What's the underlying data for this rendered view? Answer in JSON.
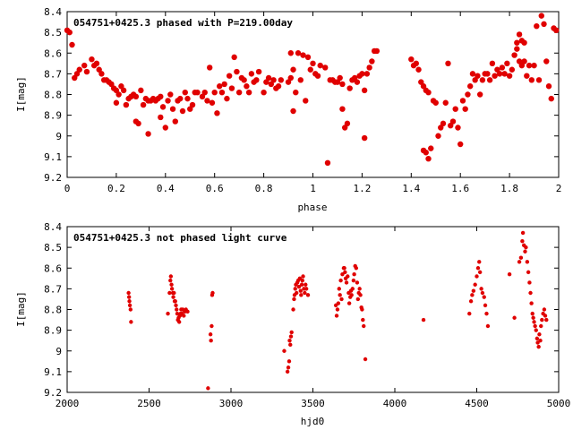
{
  "chart_data": [
    {
      "type": "scatter",
      "title": "054751+0425.3 phased with P=219.00day",
      "xlabel": "phase",
      "ylabel": "I[mag]",
      "xlim": [
        0,
        2
      ],
      "ylim": [
        9.2,
        8.4
      ],
      "y_inverted": true,
      "marker_color": "#e00000",
      "xticks": [
        "0",
        "0.2",
        "0.4",
        "0.6",
        "0.8",
        "1",
        "1.2",
        "1.4",
        "1.6",
        "1.8",
        "2"
      ],
      "yticks": [
        "8.4",
        "8.5",
        "8.6",
        "8.7",
        "8.8",
        "8.9",
        "9",
        "9.1",
        "9.2"
      ],
      "points": [
        [
          0.0,
          8.49
        ],
        [
          0.01,
          8.5
        ],
        [
          0.02,
          8.56
        ],
        [
          0.03,
          8.72
        ],
        [
          0.04,
          8.7
        ],
        [
          0.05,
          8.68
        ],
        [
          0.07,
          8.66
        ],
        [
          0.08,
          8.69
        ],
        [
          0.1,
          8.63
        ],
        [
          0.11,
          8.66
        ],
        [
          0.12,
          8.65
        ],
        [
          0.13,
          8.68
        ],
        [
          0.14,
          8.7
        ],
        [
          0.15,
          8.73
        ],
        [
          0.16,
          8.73
        ],
        [
          0.17,
          8.74
        ],
        [
          0.18,
          8.75
        ],
        [
          0.19,
          8.77
        ],
        [
          0.2,
          8.78
        ],
        [
          0.2,
          8.84
        ],
        [
          0.21,
          8.8
        ],
        [
          0.22,
          8.76
        ],
        [
          0.23,
          8.78
        ],
        [
          0.24,
          8.85
        ],
        [
          0.25,
          8.82
        ],
        [
          0.26,
          8.81
        ],
        [
          0.27,
          8.8
        ],
        [
          0.28,
          8.81
        ],
        [
          0.28,
          8.93
        ],
        [
          0.29,
          8.94
        ],
        [
          0.3,
          8.78
        ],
        [
          0.31,
          8.85
        ],
        [
          0.32,
          8.82
        ],
        [
          0.33,
          8.99
        ],
        [
          0.33,
          8.83
        ],
        [
          0.34,
          8.83
        ],
        [
          0.35,
          8.82
        ],
        [
          0.36,
          8.83
        ],
        [
          0.37,
          8.82
        ],
        [
          0.38,
          8.81
        ],
        [
          0.38,
          8.91
        ],
        [
          0.39,
          8.86
        ],
        [
          0.4,
          8.96
        ],
        [
          0.41,
          8.83
        ],
        [
          0.42,
          8.8
        ],
        [
          0.43,
          8.87
        ],
        [
          0.44,
          8.93
        ],
        [
          0.45,
          8.83
        ],
        [
          0.46,
          8.82
        ],
        [
          0.47,
          8.88
        ],
        [
          0.48,
          8.79
        ],
        [
          0.49,
          8.82
        ],
        [
          0.5,
          8.87
        ],
        [
          0.51,
          8.85
        ],
        [
          0.52,
          8.79
        ],
        [
          0.53,
          8.79
        ],
        [
          0.55,
          8.81
        ],
        [
          0.56,
          8.79
        ],
        [
          0.57,
          8.83
        ],
        [
          0.58,
          8.67
        ],
        [
          0.59,
          8.84
        ],
        [
          0.6,
          8.79
        ],
        [
          0.61,
          8.89
        ],
        [
          0.62,
          8.76
        ],
        [
          0.63,
          8.79
        ],
        [
          0.64,
          8.75
        ],
        [
          0.65,
          8.82
        ],
        [
          0.66,
          8.71
        ],
        [
          0.67,
          8.77
        ],
        [
          0.68,
          8.62
        ],
        [
          0.69,
          8.69
        ],
        [
          0.7,
          8.79
        ],
        [
          0.71,
          8.72
        ],
        [
          0.72,
          8.73
        ],
        [
          0.73,
          8.76
        ],
        [
          0.74,
          8.79
        ],
        [
          0.75,
          8.7
        ],
        [
          0.76,
          8.74
        ],
        [
          0.77,
          8.73
        ],
        [
          0.78,
          8.69
        ],
        [
          0.8,
          8.79
        ],
        [
          0.81,
          8.74
        ],
        [
          0.82,
          8.72
        ],
        [
          0.83,
          8.75
        ],
        [
          0.84,
          8.73
        ],
        [
          0.85,
          8.77
        ],
        [
          0.86,
          8.76
        ],
        [
          0.87,
          8.73
        ],
        [
          0.9,
          8.74
        ],
        [
          0.91,
          8.72
        ],
        [
          0.91,
          8.6
        ],
        [
          0.92,
          8.68
        ],
        [
          0.92,
          8.88
        ],
        [
          0.93,
          8.79
        ],
        [
          0.94,
          8.6
        ],
        [
          0.95,
          8.73
        ],
        [
          0.96,
          8.61
        ],
        [
          0.97,
          8.83
        ],
        [
          0.98,
          8.62
        ],
        [
          0.99,
          8.68
        ],
        [
          1.0,
          8.65
        ],
        [
          1.01,
          8.7
        ],
        [
          1.02,
          8.71
        ],
        [
          1.03,
          8.66
        ],
        [
          1.05,
          8.67
        ],
        [
          1.06,
          9.13
        ],
        [
          1.07,
          8.73
        ],
        [
          1.08,
          8.73
        ],
        [
          1.09,
          8.74
        ],
        [
          1.1,
          8.74
        ],
        [
          1.11,
          8.72
        ],
        [
          1.12,
          8.75
        ],
        [
          1.12,
          8.87
        ],
        [
          1.13,
          8.96
        ],
        [
          1.14,
          8.94
        ],
        [
          1.15,
          8.77
        ],
        [
          1.16,
          8.73
        ],
        [
          1.17,
          8.72
        ],
        [
          1.18,
          8.74
        ],
        [
          1.19,
          8.71
        ],
        [
          1.2,
          8.7
        ],
        [
          1.21,
          8.78
        ],
        [
          1.22,
          8.7
        ],
        [
          1.23,
          8.67
        ],
        [
          1.24,
          8.64
        ],
        [
          1.25,
          8.59
        ],
        [
          1.26,
          8.59
        ],
        [
          1.21,
          9.01
        ],
        [
          1.4,
          8.63
        ],
        [
          1.41,
          8.66
        ],
        [
          1.42,
          8.65
        ],
        [
          1.43,
          8.68
        ],
        [
          1.44,
          8.74
        ],
        [
          1.45,
          8.76
        ],
        [
          1.46,
          8.78
        ],
        [
          1.47,
          8.79
        ],
        [
          1.45,
          9.07
        ],
        [
          1.46,
          9.08
        ],
        [
          1.47,
          9.11
        ],
        [
          1.48,
          9.06
        ],
        [
          1.49,
          8.83
        ],
        [
          1.5,
          8.84
        ],
        [
          1.51,
          9.0
        ],
        [
          1.52,
          8.96
        ],
        [
          1.53,
          8.94
        ],
        [
          1.54,
          8.84
        ],
        [
          1.55,
          8.65
        ],
        [
          1.56,
          8.95
        ],
        [
          1.57,
          8.93
        ],
        [
          1.58,
          8.87
        ],
        [
          1.59,
          8.96
        ],
        [
          1.6,
          9.04
        ],
        [
          1.61,
          8.83
        ],
        [
          1.62,
          8.87
        ],
        [
          1.63,
          8.8
        ],
        [
          1.64,
          8.76
        ],
        [
          1.65,
          8.7
        ],
        [
          1.66,
          8.73
        ],
        [
          1.67,
          8.71
        ],
        [
          1.68,
          8.8
        ],
        [
          1.69,
          8.73
        ],
        [
          1.7,
          8.7
        ],
        [
          1.71,
          8.7
        ],
        [
          1.72,
          8.73
        ],
        [
          1.73,
          8.65
        ],
        [
          1.74,
          8.71
        ],
        [
          1.75,
          8.68
        ],
        [
          1.76,
          8.7
        ],
        [
          1.77,
          8.67
        ],
        [
          1.78,
          8.7
        ],
        [
          1.79,
          8.65
        ],
        [
          1.8,
          8.71
        ],
        [
          1.81,
          8.68
        ],
        [
          1.82,
          8.61
        ],
        [
          1.83,
          8.58
        ],
        [
          1.84,
          8.64
        ],
        [
          1.85,
          8.66
        ],
        [
          1.86,
          8.64
        ],
        [
          1.87,
          8.71
        ],
        [
          1.88,
          8.66
        ],
        [
          1.89,
          8.73
        ],
        [
          1.9,
          8.66
        ],
        [
          1.91,
          8.47
        ],
        [
          1.92,
          8.73
        ],
        [
          1.93,
          8.42
        ],
        [
          1.94,
          8.46
        ],
        [
          1.95,
          8.64
        ],
        [
          1.96,
          8.76
        ],
        [
          1.97,
          8.82
        ],
        [
          1.98,
          8.48
        ],
        [
          1.99,
          8.49
        ],
        [
          1.84,
          8.51
        ],
        [
          1.83,
          8.55
        ],
        [
          1.85,
          8.54
        ],
        [
          1.86,
          8.55
        ]
      ]
    },
    {
      "type": "scatter",
      "title": "054751+0425.3 not phased light curve",
      "xlabel": "hjd0",
      "ylabel": "I[mag]",
      "xlim": [
        2000,
        5000
      ],
      "ylim": [
        9.2,
        8.4
      ],
      "y_inverted": true,
      "marker_color": "#e00000",
      "xticks": [
        "2000",
        "2500",
        "3000",
        "3500",
        "4000",
        "4500",
        "5000"
      ],
      "yticks": [
        "8.4",
        "8.5",
        "8.6",
        "8.7",
        "8.8",
        "8.9",
        "9",
        "9.1",
        "9.2"
      ],
      "points": [
        [
          2375,
          8.72
        ],
        [
          2378,
          8.74
        ],
        [
          2380,
          8.76
        ],
        [
          2383,
          8.78
        ],
        [
          2387,
          8.8
        ],
        [
          2390,
          8.86
        ],
        [
          2615,
          8.82
        ],
        [
          2625,
          8.72
        ],
        [
          2630,
          8.66
        ],
        [
          2633,
          8.64
        ],
        [
          2637,
          8.68
        ],
        [
          2640,
          8.7
        ],
        [
          2645,
          8.72
        ],
        [
          2648,
          8.74
        ],
        [
          2652,
          8.72
        ],
        [
          2656,
          8.76
        ],
        [
          2660,
          8.76
        ],
        [
          2664,
          8.78
        ],
        [
          2668,
          8.8
        ],
        [
          2672,
          8.82
        ],
        [
          2676,
          8.85
        ],
        [
          2680,
          8.84
        ],
        [
          2684,
          8.86
        ],
        [
          2688,
          8.83
        ],
        [
          2692,
          8.82
        ],
        [
          2696,
          8.8
        ],
        [
          2700,
          8.82
        ],
        [
          2706,
          8.8
        ],
        [
          2712,
          8.83
        ],
        [
          2718,
          8.81
        ],
        [
          2725,
          8.8
        ],
        [
          2735,
          8.81
        ],
        [
          2860,
          9.18
        ],
        [
          2875,
          8.92
        ],
        [
          2878,
          8.95
        ],
        [
          2882,
          8.88
        ],
        [
          2885,
          8.73
        ],
        [
          2888,
          8.72
        ],
        [
          3325,
          9.0
        ],
        [
          3345,
          9.1
        ],
        [
          3350,
          9.08
        ],
        [
          3355,
          9.05
        ],
        [
          3358,
          8.95
        ],
        [
          3362,
          8.97
        ],
        [
          3366,
          8.93
        ],
        [
          3370,
          8.91
        ],
        [
          3380,
          8.8
        ],
        [
          3385,
          8.75
        ],
        [
          3388,
          8.73
        ],
        [
          3392,
          8.7
        ],
        [
          3396,
          8.68
        ],
        [
          3400,
          8.72
        ],
        [
          3405,
          8.67
        ],
        [
          3410,
          8.66
        ],
        [
          3415,
          8.69
        ],
        [
          3420,
          8.65
        ],
        [
          3425,
          8.71
        ],
        [
          3428,
          8.73
        ],
        [
          3432,
          8.68
        ],
        [
          3436,
          8.66
        ],
        [
          3440,
          8.64
        ],
        [
          3445,
          8.7
        ],
        [
          3450,
          8.72
        ],
        [
          3455,
          8.68
        ],
        [
          3460,
          8.7
        ],
        [
          3470,
          8.73
        ],
        [
          3640,
          8.78
        ],
        [
          3645,
          8.83
        ],
        [
          3650,
          8.8
        ],
        [
          3655,
          8.77
        ],
        [
          3660,
          8.7
        ],
        [
          3665,
          8.73
        ],
        [
          3670,
          8.66
        ],
        [
          3675,
          8.75
        ],
        [
          3680,
          8.63
        ],
        [
          3688,
          8.6
        ],
        [
          3692,
          8.6
        ],
        [
          3696,
          8.62
        ],
        [
          3700,
          8.65
        ],
        [
          3705,
          8.67
        ],
        [
          3712,
          8.64
        ],
        [
          3718,
          8.72
        ],
        [
          3722,
          8.77
        ],
        [
          3728,
          8.74
        ],
        [
          3732,
          8.71
        ],
        [
          3736,
          8.73
        ],
        [
          3742,
          8.7
        ],
        [
          3748,
          8.66
        ],
        [
          3752,
          8.63
        ],
        [
          3758,
          8.59
        ],
        [
          3764,
          8.6
        ],
        [
          3770,
          8.67
        ],
        [
          3775,
          8.75
        ],
        [
          3780,
          8.72
        ],
        [
          3785,
          8.7
        ],
        [
          3790,
          8.73
        ],
        [
          3796,
          8.79
        ],
        [
          3800,
          8.8
        ],
        [
          3805,
          8.85
        ],
        [
          3810,
          8.88
        ],
        [
          3820,
          9.04
        ],
        [
          4175,
          8.85
        ],
        [
          4455,
          8.82
        ],
        [
          4465,
          8.76
        ],
        [
          4472,
          8.73
        ],
        [
          4480,
          8.71
        ],
        [
          4490,
          8.68
        ],
        [
          4500,
          8.64
        ],
        [
          4508,
          8.6
        ],
        [
          4515,
          8.57
        ],
        [
          4520,
          8.62
        ],
        [
          4528,
          8.7
        ],
        [
          4535,
          8.72
        ],
        [
          4545,
          8.74
        ],
        [
          4552,
          8.78
        ],
        [
          4560,
          8.82
        ],
        [
          4568,
          8.88
        ],
        [
          4700,
          8.63
        ],
        [
          4730,
          8.84
        ],
        [
          4760,
          8.57
        ],
        [
          4770,
          8.55
        ],
        [
          4778,
          8.47
        ],
        [
          4782,
          8.43
        ],
        [
          4788,
          8.49
        ],
        [
          4795,
          8.52
        ],
        [
          4800,
          8.5
        ],
        [
          4808,
          8.57
        ],
        [
          4815,
          8.62
        ],
        [
          4822,
          8.67
        ],
        [
          4828,
          8.72
        ],
        [
          4834,
          8.77
        ],
        [
          4840,
          8.82
        ],
        [
          4845,
          8.84
        ],
        [
          4850,
          8.86
        ],
        [
          4856,
          8.88
        ],
        [
          4862,
          8.9
        ],
        [
          4868,
          8.94
        ],
        [
          4872,
          8.96
        ],
        [
          4878,
          8.98
        ],
        [
          4882,
          8.92
        ],
        [
          4888,
          8.95
        ],
        [
          4892,
          8.88
        ],
        [
          4898,
          8.85
        ],
        [
          4905,
          8.82
        ],
        [
          4912,
          8.8
        ],
        [
          4918,
          8.83
        ],
        [
          4925,
          8.85
        ]
      ]
    }
  ]
}
